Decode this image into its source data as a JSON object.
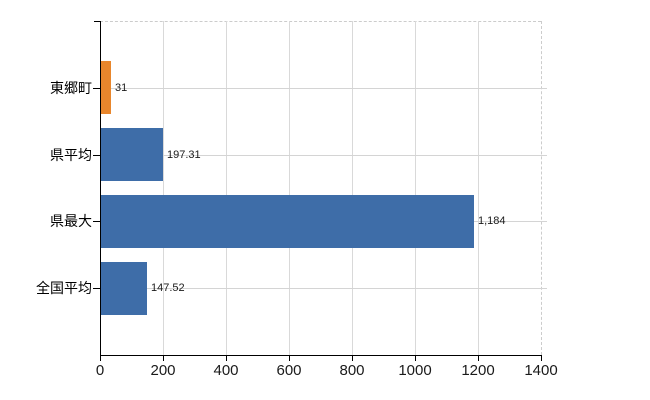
{
  "chart_data": {
    "type": "bar",
    "orientation": "horizontal",
    "title": "",
    "xlabel": "",
    "ylabel": "",
    "legend": false,
    "grid": true,
    "categories": [
      "東郷町",
      "県平均",
      "県最大",
      "全国平均"
    ],
    "values": [
      31,
      197.31,
      1184,
      147.52
    ],
    "value_labels": [
      "31",
      "197.31",
      "1,184",
      "147.52"
    ],
    "bar_colors": [
      "#e8862c",
      "#3e6da8",
      "#3e6da8",
      "#3e6da8"
    ],
    "highlight_color": "#e8862c",
    "series_color": "#3e6da8",
    "xlim": [
      0,
      1400
    ],
    "x_ticks": [
      0,
      200,
      400,
      600,
      800,
      1000,
      1200,
      1400
    ],
    "x_tick_labels": [
      "0",
      "200",
      "400",
      "600",
      "800",
      "1000",
      "1200",
      "1400"
    ],
    "colors": {
      "background": "#ffffff",
      "gridline": "#d9d9d9",
      "axis": "#000000",
      "text": "#1a1a1a"
    }
  }
}
